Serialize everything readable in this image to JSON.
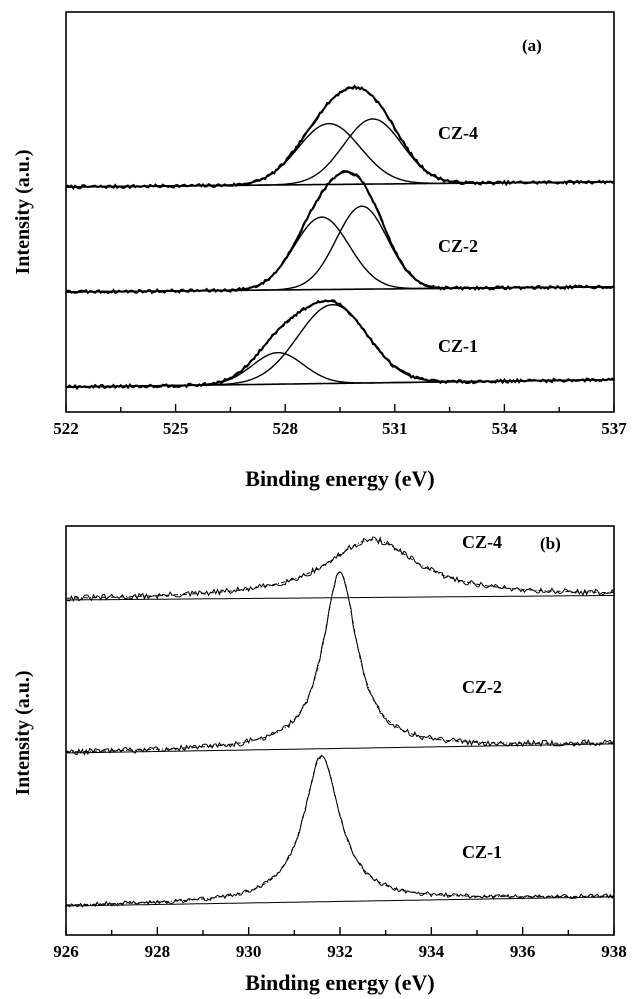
{
  "chart_data": [
    {
      "type": "line",
      "panel_label": "(a)",
      "xlabel": "Binding energy (eV)",
      "ylabel": "Intensity (a.u.)",
      "xlim": [
        522,
        537
      ],
      "x_ticks": [
        522,
        525,
        528,
        531,
        534,
        537
      ],
      "x_tick_labels": [
        "522",
        "525",
        "528",
        "531",
        "534",
        "537"
      ],
      "y_ticks_shown": false,
      "grid": false,
      "series": [
        {
          "name": "CZ-4",
          "offset": 2.0,
          "baseline": [
            0.0,
            0.05
          ],
          "noise": 0.015,
          "peaks": [
            {
              "center": 529.2,
              "height": 0.58,
              "width": 0.85
            },
            {
              "center": 530.4,
              "height": 0.62,
              "width": 0.8
            }
          ]
        },
        {
          "name": "CZ-2",
          "offset": 1.0,
          "baseline": [
            0.0,
            0.05
          ],
          "noise": 0.015,
          "peaks": [
            {
              "center": 529.0,
              "height": 0.69,
              "width": 0.75
            },
            {
              "center": 530.1,
              "height": 0.79,
              "width": 0.7
            }
          ]
        },
        {
          "name": "CZ-1",
          "offset": 0.0,
          "baseline": [
            0.0,
            0.07
          ],
          "noise": 0.015,
          "peaks": [
            {
              "center": 527.8,
              "height": 0.3,
              "width": 0.7
            },
            {
              "center": 529.3,
              "height": 0.75,
              "width": 0.95
            }
          ]
        }
      ]
    },
    {
      "type": "line",
      "panel_label": "(b)",
      "xlabel": "Binding energy (eV)",
      "ylabel": "Intensity (a.u.)",
      "xlim": [
        926,
        938
      ],
      "x_ticks": [
        926,
        928,
        930,
        932,
        934,
        936,
        938
      ],
      "x_tick_labels": [
        "926",
        "928",
        "930",
        "932",
        "934",
        "936",
        "938"
      ],
      "y_ticks_shown": false,
      "grid": false,
      "series": [
        {
          "name": "CZ-4",
          "offset": 2.0,
          "baseline": [
            0.0,
            0.03
          ],
          "noise": 0.02,
          "peaks": [
            {
              "center": 932.7,
              "height": 0.38,
              "width": 1.2
            }
          ]
        },
        {
          "name": "CZ-2",
          "offset": 1.0,
          "baseline": [
            0.0,
            0.06
          ],
          "noise": 0.02,
          "peaks": [
            {
              "center": 932.0,
              "height": 1.16,
              "width": 0.45
            }
          ]
        },
        {
          "name": "CZ-1",
          "offset": 0.0,
          "baseline": [
            0.0,
            0.06
          ],
          "noise": 0.015,
          "peaks": [
            {
              "center": 931.6,
              "height": 0.96,
              "width": 0.48
            }
          ]
        }
      ]
    }
  ]
}
